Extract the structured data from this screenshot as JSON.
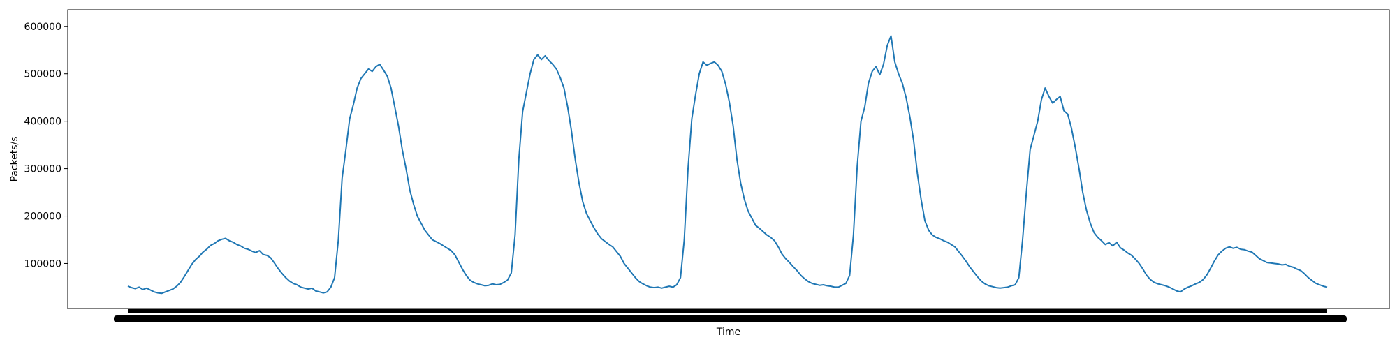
{
  "chart_data": {
    "type": "line",
    "title": "",
    "xlabel": "Time",
    "ylabel": "Packets/s",
    "ylim": [
      5000,
      635000
    ],
    "yticks": [
      100000,
      200000,
      300000,
      400000,
      500000,
      600000
    ],
    "grid": false,
    "line_color": "#1f77b4",
    "x_ticks_unreadable": true,
    "series": [
      {
        "values": [
          52000,
          49000,
          47000,
          50000,
          45000,
          48000,
          44000,
          40000,
          38000,
          37000,
          40000,
          43000,
          46000,
          52000,
          60000,
          72000,
          85000,
          98000,
          108000,
          115000,
          124000,
          130000,
          138000,
          142000,
          148000,
          151000,
          153000,
          148000,
          145000,
          140000,
          137000,
          132000,
          130000,
          126000,
          123000,
          127000,
          119000,
          117000,
          112000,
          101000,
          89000,
          79000,
          70000,
          63000,
          58000,
          55000,
          50000,
          48000,
          46000,
          48000,
          42000,
          40000,
          38000,
          40000,
          50000,
          70000,
          150000,
          280000,
          340000,
          405000,
          435000,
          470000,
          490000,
          500000,
          510000,
          505000,
          515000,
          520000,
          508000,
          495000,
          470000,
          430000,
          390000,
          340000,
          300000,
          255000,
          225000,
          200000,
          185000,
          170000,
          160000,
          150000,
          146000,
          142000,
          137000,
          132000,
          127000,
          118000,
          103000,
          88000,
          75000,
          65000,
          60000,
          57000,
          55000,
          53000,
          54000,
          57000,
          55000,
          56000,
          60000,
          65000,
          80000,
          160000,
          320000,
          420000,
          460000,
          500000,
          530000,
          540000,
          530000,
          538000,
          528000,
          520000,
          510000,
          492000,
          470000,
          430000,
          380000,
          320000,
          270000,
          230000,
          205000,
          190000,
          175000,
          162000,
          152000,
          146000,
          140000,
          135000,
          125000,
          115000,
          100000,
          90000,
          80000,
          70000,
          62000,
          57000,
          53000,
          50000,
          49000,
          50000,
          48000,
          50000,
          52000,
          50000,
          55000,
          70000,
          150000,
          300000,
          405000,
          455000,
          500000,
          525000,
          518000,
          522000,
          525000,
          518000,
          505000,
          478000,
          440000,
          390000,
          320000,
          270000,
          235000,
          210000,
          195000,
          180000,
          174000,
          167000,
          160000,
          155000,
          148000,
          135000,
          120000,
          110000,
          102000,
          93000,
          85000,
          75000,
          68000,
          62000,
          58000,
          56000,
          54000,
          55000,
          53000,
          52000,
          50000,
          50000,
          54000,
          58000,
          75000,
          160000,
          305000,
          400000,
          430000,
          480000,
          505000,
          515000,
          498000,
          520000,
          560000,
          580000,
          525000,
          500000,
          480000,
          450000,
          410000,
          360000,
          290000,
          235000,
          190000,
          170000,
          160000,
          155000,
          152000,
          148000,
          145000,
          140000,
          135000,
          125000,
          115000,
          104000,
          92000,
          82000,
          72000,
          63000,
          57000,
          53000,
          51000,
          49000,
          48000,
          49000,
          50000,
          53000,
          55000,
          70000,
          150000,
          250000,
          340000,
          370000,
          400000,
          445000,
          470000,
          452000,
          438000,
          446000,
          452000,
          422000,
          415000,
          385000,
          345000,
          300000,
          250000,
          212000,
          185000,
          165000,
          155000,
          148000,
          140000,
          144000,
          137000,
          145000,
          133000,
          128000,
          122000,
          117000,
          109000,
          100000,
          88000,
          75000,
          66000,
          60000,
          57000,
          55000,
          53000,
          50000,
          46000,
          42000,
          40000,
          46000,
          50000,
          53000,
          57000,
          60000,
          66000,
          76000,
          90000,
          105000,
          118000,
          126000,
          132000,
          135000,
          132000,
          134000,
          130000,
          129000,
          126000,
          124000,
          117000,
          110000,
          106000,
          102000,
          101000,
          100000,
          99000,
          97000,
          98000,
          94000,
          92000,
          88000,
          85000,
          78000,
          70000,
          64000,
          58000,
          55000,
          52000,
          50000
        ]
      }
    ]
  }
}
